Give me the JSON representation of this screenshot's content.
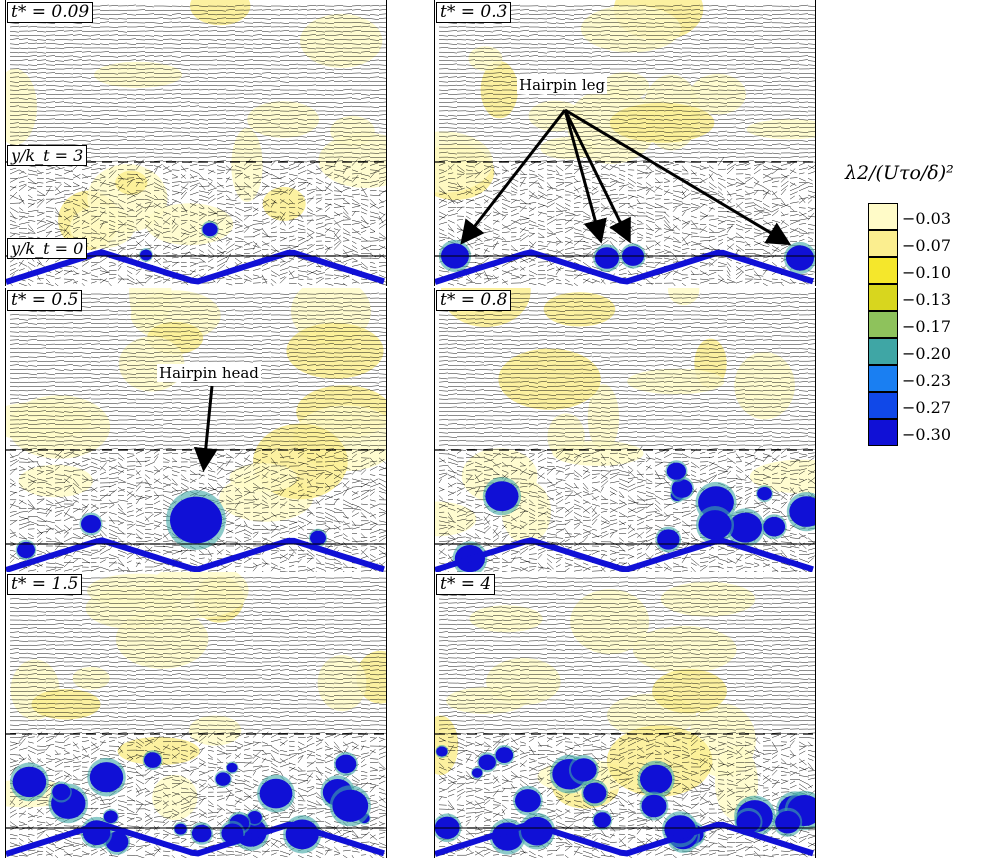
{
  "panels": [
    {
      "id": "p1",
      "time_label": "t* = 0.09",
      "vortices": "few",
      "level3_label": "y/k_t = 3",
      "level0_label": "y/k_t = 0"
    },
    {
      "id": "p2",
      "time_label": "t* = 0.3",
      "vortices": "hairpin-legs"
    },
    {
      "id": "p3",
      "time_label": "t* = 0.5",
      "vortices": "hairpin-head"
    },
    {
      "id": "p4",
      "time_label": "t* = 0.8",
      "vortices": "medium"
    },
    {
      "id": "p5",
      "time_label": "t* = 1.5",
      "vortices": "many"
    },
    {
      "id": "p6",
      "time_label": "t* = 4",
      "vortices": "many"
    }
  ],
  "annotations": {
    "hairpin_leg": "Hairpin leg",
    "hairpin_head": "Hairpin head"
  },
  "colorbar": {
    "title": "λ2/(Uτo/δ)²",
    "levels": [
      {
        "label": "−0.03",
        "color": "#fffbc8"
      },
      {
        "label": "−0.07",
        "color": "#fbee8f"
      },
      {
        "label": "−0.10",
        "color": "#f5e72b"
      },
      {
        "label": "−0.13",
        "color": "#d8d61e"
      },
      {
        "label": "−0.17",
        "color": "#8ec25c"
      },
      {
        "label": "−0.20",
        "color": "#3fa6a5"
      },
      {
        "label": "−0.23",
        "color": "#1a7ff2"
      },
      {
        "label": "−0.27",
        "color": "#1048e8"
      },
      {
        "label": "−0.30",
        "color": "#1010d6"
      }
    ]
  }
}
